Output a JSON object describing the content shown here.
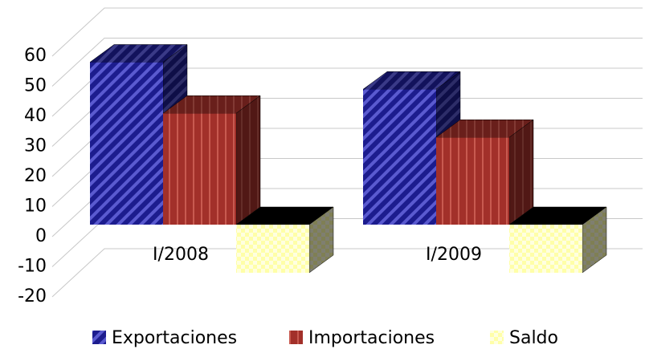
{
  "chart_data": {
    "type": "bar3d",
    "categories": [
      "I/2008",
      "I/2009"
    ],
    "series": [
      {
        "name": "Exportaciones",
        "color": "#1c1c8e",
        "values": [
          54,
          45
        ]
      },
      {
        "name": "Importaciones",
        "color": "#a2302a",
        "values": [
          37,
          29
        ]
      },
      {
        "name": "Saldo",
        "color": "#ffffa8",
        "values": [
          -16,
          -16
        ]
      }
    ],
    "ylim": [
      -20,
      60
    ],
    "yticks": [
      -20,
      -10,
      0,
      10,
      20,
      30,
      40,
      50,
      60
    ],
    "grid": true,
    "legend": "bottom"
  }
}
